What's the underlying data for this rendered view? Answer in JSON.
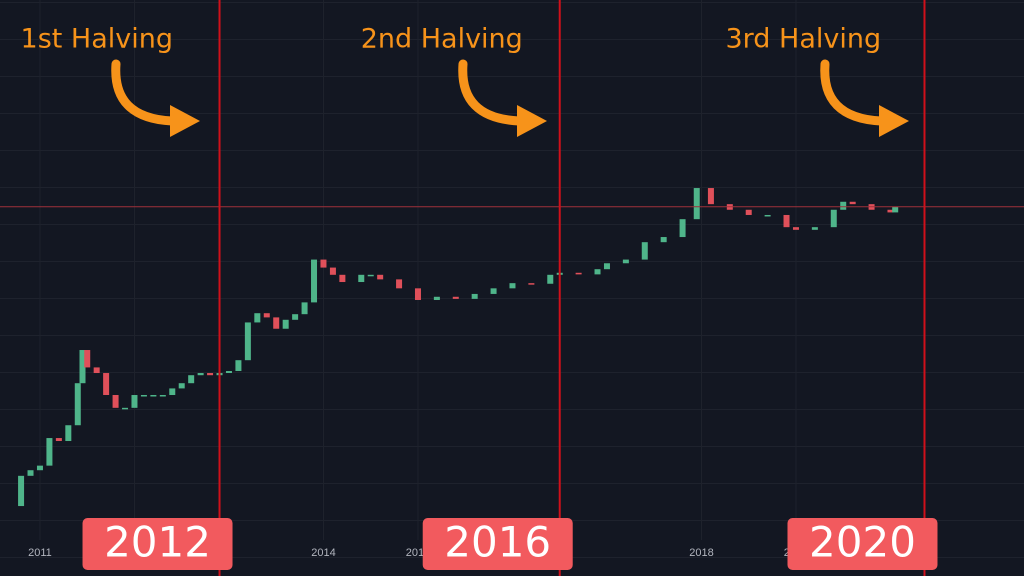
{
  "chart_data": {
    "type": "candlestick",
    "x": [
      2010.7,
      2010.8,
      2010.9,
      2011.0,
      2011.1,
      2011.2,
      2011.3,
      2011.4,
      2011.45,
      2011.5,
      2011.6,
      2011.7,
      2011.8,
      2011.9,
      2012.0,
      2012.1,
      2012.2,
      2012.3,
      2012.4,
      2012.5,
      2012.6,
      2012.7,
      2012.8,
      2012.9,
      2013.0,
      2013.1,
      2013.2,
      2013.3,
      2013.4,
      2013.5,
      2013.6,
      2013.7,
      2013.8,
      2013.9,
      2014.0,
      2014.1,
      2014.2,
      2014.4,
      2014.5,
      2014.6,
      2014.8,
      2015.0,
      2015.2,
      2015.4,
      2015.6,
      2015.8,
      2016.0,
      2016.2,
      2016.4,
      2016.5,
      2016.7,
      2016.9,
      2017.0,
      2017.2,
      2017.4,
      2017.6,
      2017.8,
      2017.95,
      2018.1,
      2018.3,
      2018.5,
      2018.7,
      2018.9,
      2019.0,
      2019.2,
      2019.4,
      2019.5,
      2019.6,
      2019.8,
      2020.0,
      2020.05
    ],
    "values": [
      0.06,
      0.2,
      0.25,
      0.3,
      0.9,
      0.8,
      1.5,
      8,
      30,
      15,
      12,
      5,
      3,
      3,
      5,
      5,
      5,
      5,
      6.5,
      8,
      11,
      12,
      11,
      12,
      13,
      20,
      90,
      130,
      110,
      70,
      100,
      125,
      200,
      1100,
      800,
      600,
      450,
      600,
      600,
      500,
      350,
      220,
      250,
      230,
      280,
      350,
      430,
      420,
      600,
      650,
      610,
      750,
      950,
      1100,
      2200,
      2700,
      5500,
      19000,
      10000,
      8000,
      6500,
      6500,
      4000,
      3600,
      4000,
      8000,
      11000,
      10000,
      8000,
      7200,
      9000
    ],
    "up_color": "#4fb58a",
    "down_color": "#e0505a",
    "log_scale": true,
    "xlim": [
      2010.577,
      2021.413
    ],
    "ylim": [
      0.0037,
      34000000
    ],
    "xticks": [
      2011,
      2012,
      2014,
      2015,
      2018,
      2019
    ],
    "grid": true,
    "last_price_line": true,
    "halvings": [
      {
        "label": "1st Halving",
        "x": 2012.9,
        "year_label": "2012"
      },
      {
        "label": "2nd Halving",
        "x": 2016.5,
        "year_label": "2016"
      },
      {
        "label": "3rd Halving",
        "x": 2020.36,
        "year_label": "2020"
      }
    ]
  }
}
